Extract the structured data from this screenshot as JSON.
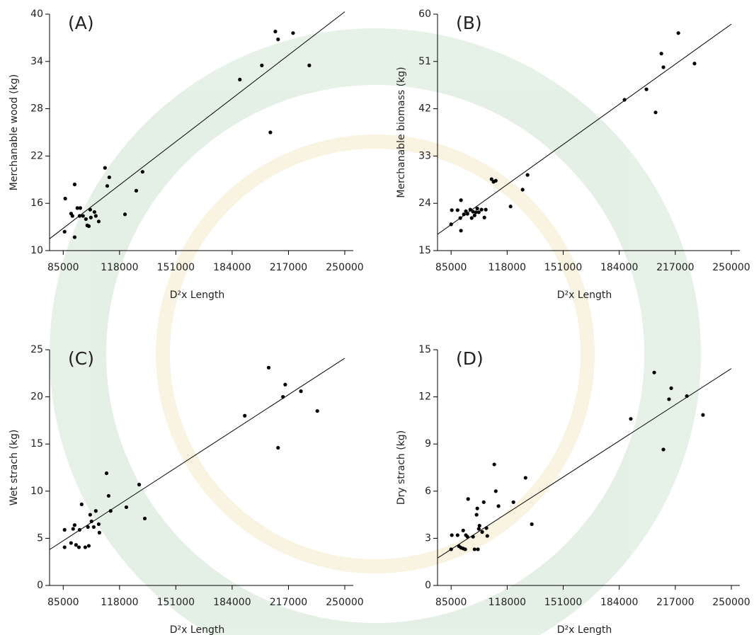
{
  "chart_data": [
    {
      "type": "scatter",
      "title": "(A)",
      "xlabel": "D²x Length",
      "ylabel": "Merchanable wood (kg)",
      "xlim": [
        77000,
        250000
      ],
      "xticks": [
        85000,
        118000,
        151000,
        184000,
        217000,
        250000
      ],
      "ylim": [
        10,
        40
      ],
      "yticks": [
        10,
        16,
        22,
        28,
        34,
        40
      ],
      "color": "#000000",
      "x": [
        85800,
        86200,
        89600,
        90400,
        91700,
        91700,
        93300,
        95000,
        94600,
        96600,
        98300,
        99100,
        100000,
        100800,
        101200,
        103300,
        104100,
        105800,
        109500,
        110800,
        112000,
        121200,
        127800,
        131500,
        188500,
        201400,
        206400,
        209300,
        210900,
        219700,
        229200
      ],
      "y": [
        12.4,
        16.6,
        14.7,
        14.4,
        11.7,
        18.4,
        15.4,
        15.4,
        14.4,
        14.4,
        14.0,
        13.2,
        13.1,
        15.2,
        14.2,
        14.9,
        14.4,
        13.7,
        20.5,
        18.2,
        19.3,
        14.6,
        17.6,
        20.0,
        31.7,
        33.5,
        25.0,
        37.8,
        36.8,
        37.6,
        33.5
      ],
      "trendline": {
        "x": [
          77000,
          250000
        ],
        "y": [
          11.5,
          40.3
        ]
      }
    },
    {
      "type": "scatter",
      "title": "(B)",
      "xlabel": "D²x Length",
      "ylabel": "Merchanable biomass (kg)",
      "xlim": [
        77000,
        250000
      ],
      "xticks": [
        85000,
        118000,
        151000,
        184000,
        217000,
        250000
      ],
      "ylim": [
        15,
        60
      ],
      "yticks": [
        15,
        24,
        33,
        42,
        51,
        60
      ],
      "color": "#000000",
      "x": [
        85000,
        85400,
        88800,
        90400,
        90800,
        90800,
        92500,
        93700,
        94600,
        96300,
        97100,
        97900,
        98800,
        99600,
        100400,
        101300,
        102900,
        104600,
        105400,
        108800,
        110000,
        111300,
        120000,
        127100,
        130000,
        187100,
        200000,
        205400,
        208800,
        210000,
        218800,
        228300
      ],
      "y": [
        20.0,
        22.7,
        22.7,
        21.2,
        24.6,
        18.8,
        21.9,
        22.5,
        22.0,
        22.8,
        21.2,
        22.4,
        21.7,
        22.3,
        23.0,
        22.3,
        22.8,
        21.3,
        22.8,
        28.6,
        28.1,
        28.3,
        23.4,
        26.6,
        29.4,
        43.7,
        45.7,
        41.3,
        52.5,
        49.9,
        56.4,
        50.6
      ],
      "trendline": {
        "x": [
          77000,
          250000
        ],
        "y": [
          18.1,
          58.1
        ]
      }
    },
    {
      "type": "scatter",
      "title": "(C)",
      "xlabel": "D²x Length",
      "ylabel": "Wet strach (kg)",
      "xlim": [
        77000,
        250000
      ],
      "xticks": [
        85000,
        118000,
        151000,
        184000,
        217000,
        250000
      ],
      "ylim": [
        0,
        25
      ],
      "yticks": [
        0,
        5,
        10,
        15,
        20,
        25
      ],
      "color": "#000000",
      "x": [
        85800,
        85800,
        89600,
        90800,
        91700,
        92500,
        94200,
        94600,
        95800,
        97900,
        99500,
        100000,
        100800,
        101600,
        102900,
        104100,
        105800,
        106200,
        110400,
        111600,
        112800,
        122000,
        129500,
        132800,
        191400,
        205400,
        210900,
        213800,
        215100,
        224300,
        233900
      ],
      "y": [
        4.05,
        5.9,
        4.5,
        6.0,
        6.4,
        4.3,
        4.05,
        5.9,
        8.6,
        4.05,
        6.2,
        4.2,
        7.5,
        6.8,
        6.2,
        7.9,
        6.5,
        5.6,
        11.9,
        9.5,
        7.9,
        8.3,
        10.7,
        7.1,
        18.0,
        23.1,
        14.6,
        20.0,
        21.3,
        20.6,
        18.5
      ],
      "trendline": {
        "x": [
          77000,
          250000
        ],
        "y": [
          3.8,
          24.1
        ]
      }
    },
    {
      "type": "scatter",
      "title": "(D)",
      "xlabel": "D²x Length",
      "ylabel": "Dry strach (kg)",
      "xlim": [
        77000,
        250000
      ],
      "xticks": [
        85000,
        118000,
        151000,
        184000,
        217000,
        250000
      ],
      "ylim": [
        0,
        15
      ],
      "yticks": [
        0,
        3,
        6,
        9,
        12,
        15
      ],
      "color": "#000000",
      "x": [
        85000,
        85400,
        88800,
        89600,
        90800,
        92100,
        92100,
        93300,
        93700,
        94600,
        95000,
        97900,
        98800,
        100000,
        100400,
        100800,
        101300,
        101700,
        103300,
        104200,
        105800,
        106300,
        110400,
        111300,
        112900,
        121700,
        128800,
        132500,
        190800,
        204600,
        210000,
        213300,
        214600,
        223800,
        233300
      ],
      "y": [
        2.3,
        3.2,
        3.2,
        2.5,
        2.4,
        2.35,
        3.5,
        2.3,
        3.2,
        3.1,
        5.5,
        3.1,
        2.3,
        4.5,
        4.9,
        2.3,
        3.6,
        3.8,
        3.4,
        5.3,
        3.65,
        3.15,
        7.7,
        6.0,
        5.05,
        5.3,
        6.85,
        3.9,
        10.6,
        13.55,
        8.65,
        11.85,
        12.55,
        12.05,
        10.85
      ],
      "trendline": {
        "x": [
          77000,
          250000
        ],
        "y": [
          1.74,
          13.8
        ]
      }
    }
  ]
}
